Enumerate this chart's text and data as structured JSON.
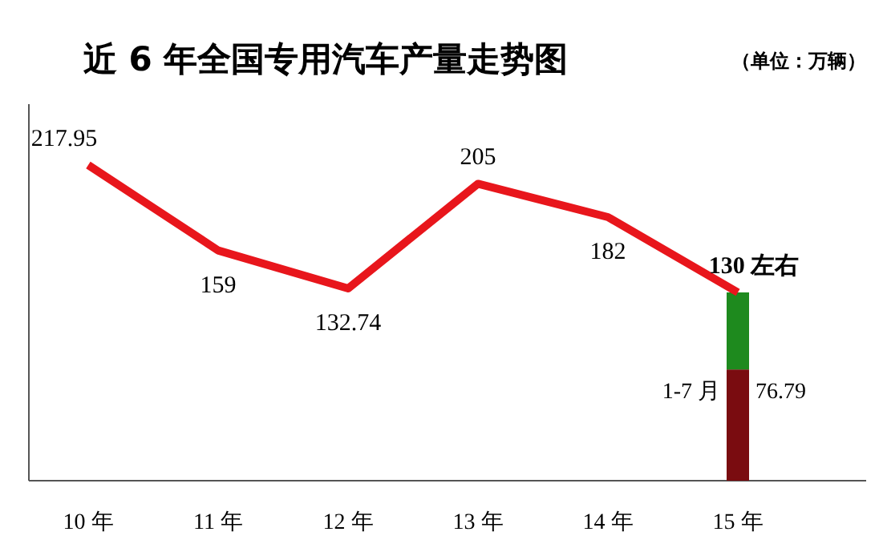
{
  "chart_data": {
    "type": "line",
    "title": "近 6 年全国专用汽车产量走势图",
    "subtitle": "（单位：万辆）",
    "categories": [
      "10 年",
      "11 年",
      "12 年",
      "13 年",
      "14 年",
      "15 年"
    ],
    "ylim": [
      0,
      260
    ],
    "tick_labels": "x",
    "stacked": true,
    "annotations": [
      {
        "text": "1-7 月",
        "x": "15 年",
        "y": 76.79
      },
      {
        "text": "76.79",
        "x": "15 年",
        "y": 76.79
      }
    ],
    "series": [
      {
        "type": "bar",
        "color": "#7a0c10",
        "values": [
          null,
          null,
          null,
          null,
          null,
          76.79
        ]
      },
      {
        "type": "bar",
        "color": "#1e8a1e",
        "values": [
          null,
          null,
          null,
          null,
          null,
          53.21
        ]
      },
      {
        "color": "#e8161c",
        "values": [
          217.95,
          159,
          132.74,
          205,
          182,
          130
        ],
        "value_labels": [
          "217.95",
          "159",
          "132.74",
          "205",
          "182",
          "**130 左右**"
        ]
      }
    ]
  }
}
